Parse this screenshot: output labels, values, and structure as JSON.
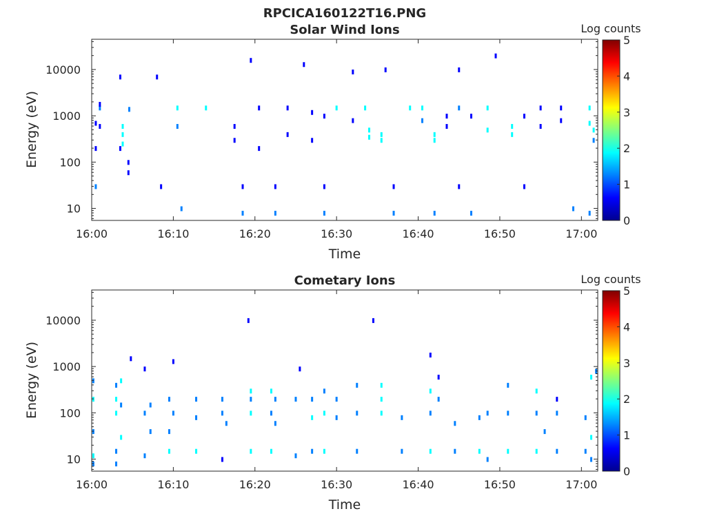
{
  "figure_title": "RPCICA160122T16.PNG",
  "colorbar": {
    "label": "Log counts",
    "min": 0,
    "max": 5,
    "ticks": [
      "0",
      "1",
      "2",
      "3",
      "4",
      "5"
    ],
    "colormap": [
      "#00008f",
      "#0000ff",
      "#0080ff",
      "#00ffff",
      "#80ff80",
      "#ffff00",
      "#ff8000",
      "#ff0000",
      "#800000"
    ]
  },
  "chart_data": [
    {
      "type": "heatmap",
      "title": "Solar Wind Ions",
      "xlabel": "Time",
      "ylabel": "Energy (eV)",
      "xlim": [
        "16:00",
        "17:02"
      ],
      "ylim": [
        5.5,
        45000
      ],
      "yscale": "log",
      "xticks": [
        "16:00",
        "16:10",
        "16:20",
        "16:30",
        "16:40",
        "16:50",
        "17:00"
      ],
      "yticks": [
        "10",
        "100",
        "1000",
        "10000"
      ],
      "grid": false,
      "value_range": [
        0,
        5
      ],
      "value_label": "Log counts",
      "columns": [
        {
          "t_min": 0.5,
          "cells": [
            [
              30,
              1
            ],
            [
              200,
              0.5
            ],
            [
              700,
              0.6
            ]
          ]
        },
        {
          "t_min": 1.0,
          "cells": [
            [
              600,
              0.8
            ],
            [
              1500,
              1.2
            ],
            [
              1800,
              0.7
            ]
          ]
        },
        {
          "t_min": 3.5,
          "cells": [
            [
              200,
              0.4
            ],
            [
              7000,
              0.6
            ]
          ]
        },
        {
          "t_min": 3.8,
          "cells": [
            [
              250,
              2.0
            ],
            [
              400,
              2.1
            ],
            [
              600,
              1.9
            ]
          ]
        },
        {
          "t_min": 4.5,
          "cells": [
            [
              100,
              0.5
            ],
            [
              60,
              0.6
            ]
          ]
        },
        {
          "t_min": 4.6,
          "cells": [
            [
              1400,
              1.5
            ]
          ]
        },
        {
          "t_min": 8.0,
          "cells": [
            [
              7000,
              0.5
            ]
          ]
        },
        {
          "t_min": 8.5,
          "cells": [
            [
              30,
              0.6
            ]
          ]
        },
        {
          "t_min": 10.5,
          "cells": [
            [
              1500,
              1.8
            ],
            [
              600,
              1.2
            ]
          ]
        },
        {
          "t_min": 11.0,
          "cells": [
            [
              10,
              1.0
            ]
          ]
        },
        {
          "t_min": 14.0,
          "cells": [
            [
              1500,
              2.0
            ]
          ]
        },
        {
          "t_min": 17.5,
          "cells": [
            [
              600,
              0.6
            ],
            [
              300,
              0.5
            ]
          ]
        },
        {
          "t_min": 18.5,
          "cells": [
            [
              30,
              0.9
            ],
            [
              8,
              1.0
            ]
          ]
        },
        {
          "t_min": 19.5,
          "cells": [
            [
              16000,
              0.5
            ]
          ]
        },
        {
          "t_min": 20.5,
          "cells": [
            [
              1500,
              0.7
            ],
            [
              200,
              0.5
            ]
          ]
        },
        {
          "t_min": 22.5,
          "cells": [
            [
              30,
              0.8
            ],
            [
              8,
              1.0
            ]
          ]
        },
        {
          "t_min": 24.0,
          "cells": [
            [
              1500,
              0.6
            ],
            [
              400,
              0.5
            ]
          ]
        },
        {
          "t_min": 26.0,
          "cells": [
            [
              13000,
              0.6
            ]
          ]
        },
        {
          "t_min": 27.0,
          "cells": [
            [
              1200,
              0.7
            ],
            [
              300,
              0.5
            ]
          ]
        },
        {
          "t_min": 28.5,
          "cells": [
            [
              30,
              0.9
            ],
            [
              8,
              1.0
            ],
            [
              1000,
              0.6
            ]
          ]
        },
        {
          "t_min": 30.0,
          "cells": [
            [
              1500,
              1.9
            ]
          ]
        },
        {
          "t_min": 32.0,
          "cells": [
            [
              800,
              0.7
            ],
            [
              9000,
              0.5
            ]
          ]
        },
        {
          "t_min": 33.5,
          "cells": [
            [
              1500,
              1.8
            ]
          ]
        },
        {
          "t_min": 34.0,
          "cells": [
            [
              500,
              2.0
            ],
            [
              350,
              1.6
            ]
          ]
        },
        {
          "t_min": 35.5,
          "cells": [
            [
              400,
              1.9
            ],
            [
              300,
              1.7
            ]
          ]
        },
        {
          "t_min": 36.0,
          "cells": [
            [
              10000,
              0.5
            ]
          ]
        },
        {
          "t_min": 37.0,
          "cells": [
            [
              8,
              1.0
            ],
            [
              30,
              0.7
            ]
          ]
        },
        {
          "t_min": 39.0,
          "cells": [
            [
              1500,
              1.6
            ]
          ]
        },
        {
          "t_min": 40.5,
          "cells": [
            [
              1500,
              1.8
            ],
            [
              800,
              1.1
            ]
          ]
        },
        {
          "t_min": 42.0,
          "cells": [
            [
              400,
              2.0
            ],
            [
              300,
              1.8
            ],
            [
              8,
              1.0
            ]
          ]
        },
        {
          "t_min": 43.5,
          "cells": [
            [
              1000,
              0.6
            ],
            [
              600,
              0.6
            ]
          ]
        },
        {
          "t_min": 45.0,
          "cells": [
            [
              1500,
              1.5
            ],
            [
              30,
              0.8
            ],
            [
              10000,
              0.6
            ]
          ]
        },
        {
          "t_min": 46.5,
          "cells": [
            [
              1000,
              0.7
            ],
            [
              8,
              1.0
            ]
          ]
        },
        {
          "t_min": 48.5,
          "cells": [
            [
              1500,
              1.7
            ],
            [
              500,
              1.9
            ]
          ]
        },
        {
          "t_min": 49.5,
          "cells": [
            [
              20000,
              0.5
            ]
          ]
        },
        {
          "t_min": 51.5,
          "cells": [
            [
              600,
              1.8
            ],
            [
              400,
              1.7
            ]
          ]
        },
        {
          "t_min": 53.0,
          "cells": [
            [
              30,
              0.8
            ],
            [
              1000,
              0.6
            ]
          ]
        },
        {
          "t_min": 55.0,
          "cells": [
            [
              1500,
              0.7
            ],
            [
              600,
              0.6
            ]
          ]
        },
        {
          "t_min": 57.5,
          "cells": [
            [
              1500,
              0.7
            ],
            [
              800,
              0.6
            ]
          ]
        },
        {
          "t_min": 59.0,
          "cells": [
            [
              10,
              1.0
            ]
          ]
        },
        {
          "t_min": 61.0,
          "cells": [
            [
              700,
              2.0
            ],
            [
              1500,
              1.8
            ],
            [
              8,
              1.0
            ]
          ]
        },
        {
          "t_min": 61.5,
          "cells": [
            [
              500,
              1.9
            ],
            [
              300,
              1.5
            ]
          ]
        }
      ]
    },
    {
      "type": "heatmap",
      "title": "Cometary Ions",
      "xlabel": "Time",
      "ylabel": "Energy (eV)",
      "xlim": [
        "16:00",
        "17:02"
      ],
      "ylim": [
        5.5,
        45000
      ],
      "yscale": "log",
      "xticks": [
        "16:00",
        "16:10",
        "16:20",
        "16:30",
        "16:40",
        "16:50",
        "17:00"
      ],
      "yticks": [
        "10",
        "100",
        "1000",
        "10000"
      ],
      "grid": false,
      "value_range": [
        0,
        5
      ],
      "value_label": "Log counts",
      "columns": [
        {
          "t_min": 0.2,
          "cells": [
            [
              8,
              1.1
            ],
            [
              12,
              1.6
            ],
            [
              40,
              1.2
            ],
            [
              200,
              1.8
            ],
            [
              500,
              1.0
            ]
          ]
        },
        {
          "t_min": 3.0,
          "cells": [
            [
              8,
              1.0
            ],
            [
              15,
              1.2
            ],
            [
              100,
              1.6
            ],
            [
              200,
              1.8
            ],
            [
              400,
              1.5
            ]
          ]
        },
        {
          "t_min": 3.6,
          "cells": [
            [
              30,
              1.7
            ],
            [
              150,
              1.4
            ],
            [
              500,
              1.9
            ]
          ]
        },
        {
          "t_min": 4.8,
          "cells": [
            [
              1500,
              0.6
            ]
          ]
        },
        {
          "t_min": 6.5,
          "cells": [
            [
              12,
              1.2
            ],
            [
              100,
              1.3
            ],
            [
              900,
              0.5
            ]
          ]
        },
        {
          "t_min": 7.2,
          "cells": [
            [
              40,
              1.4
            ],
            [
              150,
              1.0
            ]
          ]
        },
        {
          "t_min": 9.5,
          "cells": [
            [
              15,
              1.8
            ],
            [
              40,
              1.3
            ],
            [
              200,
              1.0
            ]
          ]
        },
        {
          "t_min": 10.0,
          "cells": [
            [
              100,
              1.4
            ],
            [
              1300,
              0.6
            ]
          ]
        },
        {
          "t_min": 12.8,
          "cells": [
            [
              15,
              2.0
            ],
            [
              80,
              1.2
            ],
            [
              200,
              1.2
            ]
          ]
        },
        {
          "t_min": 16.0,
          "cells": [
            [
              100,
              1.4
            ],
            [
              200,
              1.3
            ],
            [
              10,
              0.8
            ]
          ]
        },
        {
          "t_min": 16.5,
          "cells": [
            [
              60,
              1.2
            ]
          ]
        },
        {
          "t_min": 19.2,
          "cells": [
            [
              10000,
              0.5
            ]
          ]
        },
        {
          "t_min": 19.5,
          "cells": [
            [
              15,
              1.8
            ],
            [
              100,
              1.6
            ],
            [
              200,
              1.4
            ],
            [
              300,
              1.9
            ]
          ]
        },
        {
          "t_min": 22.0,
          "cells": [
            [
              15,
              1.8
            ],
            [
              100,
              1.3
            ],
            [
              300,
              1.8
            ]
          ]
        },
        {
          "t_min": 22.5,
          "cells": [
            [
              200,
              1.5
            ],
            [
              60,
              1.3
            ]
          ]
        },
        {
          "t_min": 25.0,
          "cells": [
            [
              12,
              1.0
            ],
            [
              200,
              1.3
            ]
          ]
        },
        {
          "t_min": 25.5,
          "cells": [
            [
              900,
              0.6
            ]
          ]
        },
        {
          "t_min": 27.0,
          "cells": [
            [
              15,
              1.3
            ],
            [
              80,
              1.6
            ],
            [
              200,
              1.2
            ]
          ]
        },
        {
          "t_min": 28.5,
          "cells": [
            [
              15,
              2.0
            ],
            [
              100,
              1.8
            ],
            [
              300,
              1.4
            ]
          ]
        },
        {
          "t_min": 30.0,
          "cells": [
            [
              200,
              1.4
            ],
            [
              80,
              1.1
            ]
          ]
        },
        {
          "t_min": 32.5,
          "cells": [
            [
              15,
              1.4
            ],
            [
              100,
              1.5
            ],
            [
              400,
              1.2
            ]
          ]
        },
        {
          "t_min": 34.5,
          "cells": [
            [
              10000,
              0.6
            ]
          ]
        },
        {
          "t_min": 35.5,
          "cells": [
            [
              100,
              1.8
            ],
            [
              200,
              2.0
            ],
            [
              400,
              1.6
            ]
          ]
        },
        {
          "t_min": 38.0,
          "cells": [
            [
              15,
              1.4
            ],
            [
              80,
              1.3
            ]
          ]
        },
        {
          "t_min": 41.5,
          "cells": [
            [
              15,
              1.8
            ],
            [
              100,
              1.4
            ],
            [
              300,
              1.6
            ],
            [
              1800,
              0.6
            ]
          ]
        },
        {
          "t_min": 42.5,
          "cells": [
            [
              600,
              0.8
            ],
            [
              200,
              1.2
            ]
          ]
        },
        {
          "t_min": 44.5,
          "cells": [
            [
              15,
              1.4
            ],
            [
              60,
              1.2
            ]
          ]
        },
        {
          "t_min": 47.5,
          "cells": [
            [
              15,
              1.6
            ],
            [
              80,
              1.3
            ]
          ]
        },
        {
          "t_min": 48.5,
          "cells": [
            [
              10,
              1.0
            ],
            [
              100,
              1.4
            ]
          ]
        },
        {
          "t_min": 51.0,
          "cells": [
            [
              15,
              1.6
            ],
            [
              100,
              1.3
            ],
            [
              400,
              1.1
            ]
          ]
        },
        {
          "t_min": 54.5,
          "cells": [
            [
              15,
              1.8
            ],
            [
              100,
              1.5
            ],
            [
              300,
              1.7
            ]
          ]
        },
        {
          "t_min": 55.5,
          "cells": [
            [
              40,
              1.2
            ]
          ]
        },
        {
          "t_min": 57.0,
          "cells": [
            [
              15,
              1.4
            ],
            [
              100,
              1.1
            ],
            [
              200,
              0.8
            ]
          ]
        },
        {
          "t_min": 60.5,
          "cells": [
            [
              15,
              1.4
            ],
            [
              80,
              1.2
            ]
          ]
        },
        {
          "t_min": 61.2,
          "cells": [
            [
              10,
              1.2
            ],
            [
              30,
              1.7
            ],
            [
              600,
              1.9
            ]
          ]
        },
        {
          "t_min": 61.8,
          "cells": [
            [
              800,
              1.2
            ]
          ]
        }
      ]
    }
  ]
}
